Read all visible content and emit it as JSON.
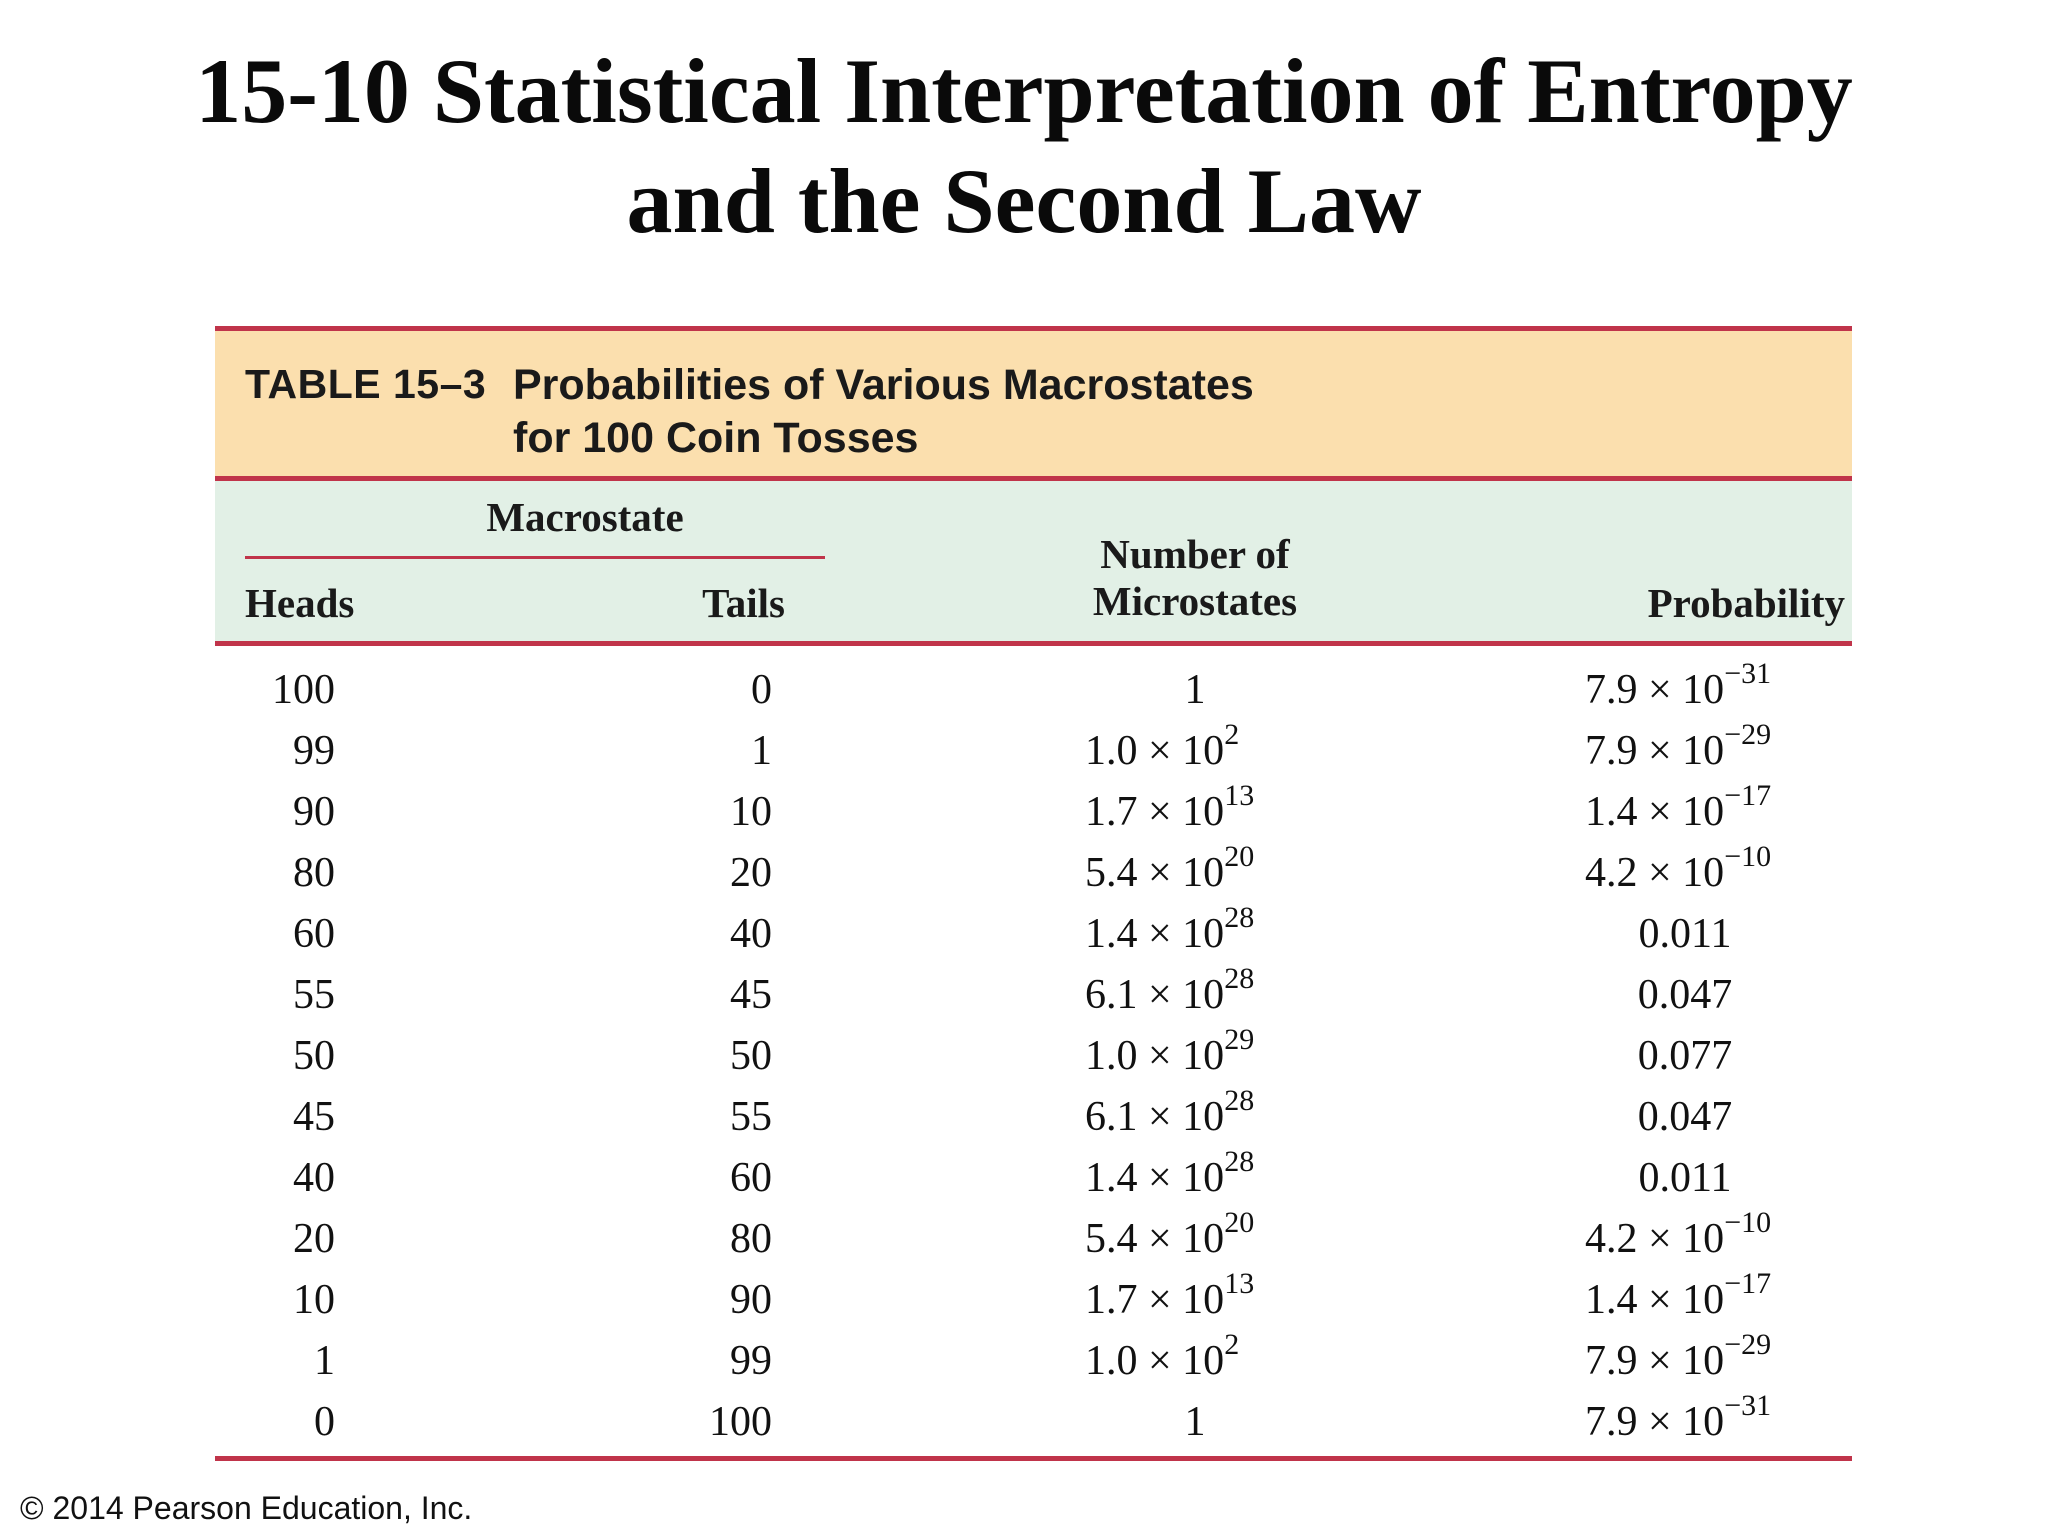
{
  "slide": {
    "title_line1": "15-10 Statistical Interpretation of Entropy",
    "title_line2": "and the Second Law"
  },
  "table": {
    "label": "TABLE 15–3",
    "title_line1": "Probabilities of Various Macrostates",
    "title_line2": "for 100 Coin Tosses",
    "group_header": "Macrostate",
    "columns": {
      "heads": "Heads",
      "tails": "Tails",
      "micro_line1": "Number of",
      "micro_line2": "Microstates",
      "probability": "Probability"
    },
    "rows": [
      {
        "heads": "100",
        "tails": "0",
        "micro": {
          "text": "1"
        },
        "prob": {
          "mant": "7.9 × 10",
          "exp": "−31"
        }
      },
      {
        "heads": "99",
        "tails": "1",
        "micro": {
          "mant": "1.0 × 10",
          "exp": "2"
        },
        "prob": {
          "mant": "7.9 × 10",
          "exp": "−29"
        }
      },
      {
        "heads": "90",
        "tails": "10",
        "micro": {
          "mant": "1.7 × 10",
          "exp": "13"
        },
        "prob": {
          "mant": "1.4 × 10",
          "exp": "−17"
        }
      },
      {
        "heads": "80",
        "tails": "20",
        "micro": {
          "mant": "5.4 × 10",
          "exp": "20"
        },
        "prob": {
          "mant": "4.2 × 10",
          "exp": "−10"
        }
      },
      {
        "heads": "60",
        "tails": "40",
        "micro": {
          "mant": "1.4 × 10",
          "exp": "28"
        },
        "prob": {
          "text": "0.011"
        }
      },
      {
        "heads": "55",
        "tails": "45",
        "micro": {
          "mant": "6.1 × 10",
          "exp": "28"
        },
        "prob": {
          "text": "0.047"
        }
      },
      {
        "heads": "50",
        "tails": "50",
        "micro": {
          "mant": "1.0 × 10",
          "exp": "29"
        },
        "prob": {
          "text": "0.077"
        }
      },
      {
        "heads": "45",
        "tails": "55",
        "micro": {
          "mant": "6.1 × 10",
          "exp": "28"
        },
        "prob": {
          "text": "0.047"
        }
      },
      {
        "heads": "40",
        "tails": "60",
        "micro": {
          "mant": "1.4 × 10",
          "exp": "28"
        },
        "prob": {
          "text": "0.011"
        }
      },
      {
        "heads": "20",
        "tails": "80",
        "micro": {
          "mant": "5.4 × 10",
          "exp": "20"
        },
        "prob": {
          "mant": "4.2 × 10",
          "exp": "−10"
        }
      },
      {
        "heads": "10",
        "tails": "90",
        "micro": {
          "mant": "1.7 × 10",
          "exp": "13"
        },
        "prob": {
          "mant": "1.4 × 10",
          "exp": "−17"
        }
      },
      {
        "heads": "1",
        "tails": "99",
        "micro": {
          "mant": "1.0 × 10",
          "exp": "2"
        },
        "prob": {
          "mant": "7.9 × 10",
          "exp": "−29"
        }
      },
      {
        "heads": "0",
        "tails": "100",
        "micro": {
          "text": "1"
        },
        "prob": {
          "mant": "7.9 × 10",
          "exp": "−31"
        }
      }
    ]
  },
  "footer": {
    "copyright": "© 2014 Pearson Education, Inc."
  },
  "colors": {
    "rule": "#c0344a",
    "caption_band": "#fbdfae",
    "header_band": "#e2f0e6"
  }
}
